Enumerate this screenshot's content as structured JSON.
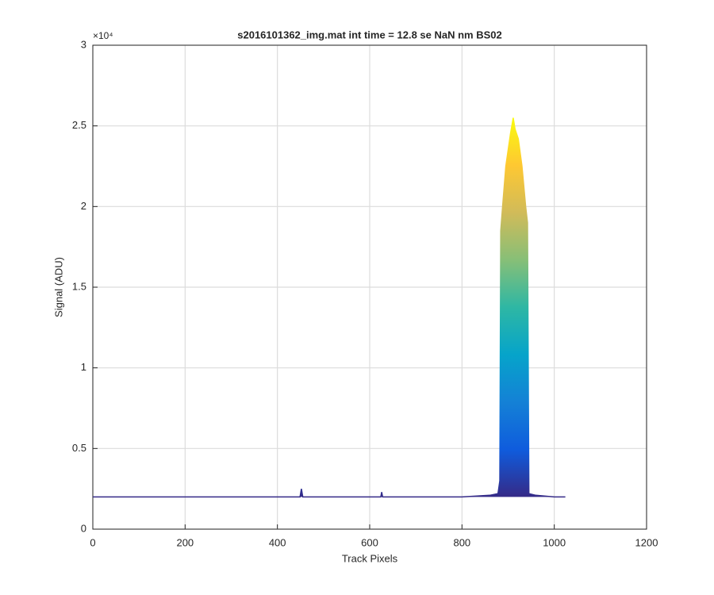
{
  "chart_data": {
    "type": "line",
    "title": "s2016101362_img.mat int time = 12.8 se  NaN nm BS02",
    "x_label": "Track Pixels",
    "y_label": "Signal (ADU)",
    "y_multiplier": "×10⁴",
    "x": [
      0,
      100,
      200,
      300,
      400,
      449,
      452,
      455,
      500,
      600,
      624,
      626,
      628,
      700,
      800,
      860,
      878,
      882,
      884,
      888,
      895,
      905,
      911,
      915,
      922,
      930,
      938,
      942,
      945,
      960,
      1000,
      1024
    ],
    "series": [
      {
        "name": "Signal",
        "values": [
          0.2,
          0.2,
          0.2,
          0.2,
          0.2,
          0.2,
          0.25,
          0.2,
          0.2,
          0.2,
          0.2,
          0.23,
          0.2,
          0.2,
          0.2,
          0.21,
          0.22,
          0.3,
          1.85,
          2.0,
          2.25,
          2.45,
          2.55,
          2.48,
          2.42,
          2.25,
          2.0,
          1.9,
          0.22,
          0.21,
          0.2,
          0.2
        ]
      }
    ],
    "colormap": [
      "#352a87",
      "#0f5cdd",
      "#1481d6",
      "#06a4ca",
      "#2eb7a4",
      "#87bf77",
      "#d1bb59",
      "#fec832",
      "#f9fb0e"
    ],
    "xlim": [
      0,
      1200
    ],
    "xticks": [
      0,
      200,
      400,
      600,
      800,
      1000,
      1200
    ],
    "ylim": [
      0,
      3
    ],
    "yticks": [
      0,
      0.5,
      1,
      1.5,
      2,
      2.5,
      3
    ],
    "grid": true
  }
}
